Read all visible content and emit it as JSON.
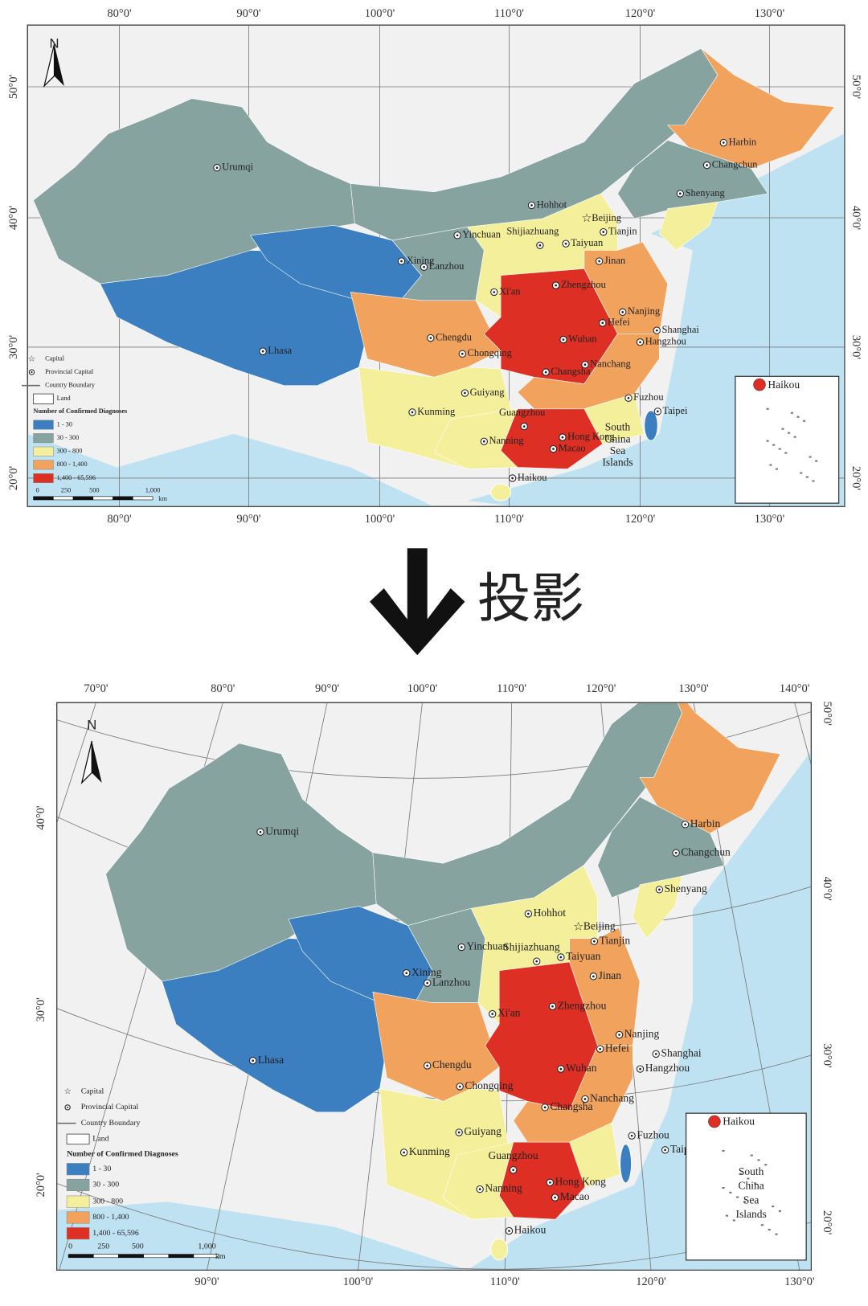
{
  "arrow_label": "投影",
  "maps": [
    {
      "north": "N",
      "lon_top_labels": [
        "80°0'",
        "90°0'",
        "100°0'",
        "110°0'",
        "120°0'",
        "130°0'"
      ],
      "lon_bottom_labels": [
        "80°0'",
        "90°0'",
        "100°0'",
        "110°0'",
        "120°0'",
        "130°0'"
      ],
      "lat_left_labels": [
        "50°0'",
        "40°0'",
        "30°0'",
        "20°0'"
      ],
      "lat_right_labels": [
        "50°0'",
        "40°0'",
        "30°0'",
        "20°0'"
      ],
      "cities": [
        "Urumqi",
        "Hohhot",
        "Beijing",
        "Tianjin",
        "Yinchuan",
        "Shijiazhuang",
        "Taiyuan",
        "Xining",
        "Lanzhou",
        "Jinan",
        "Zhengzhou",
        "Xi'an",
        "Nanjing",
        "Hefei",
        "Shanghai",
        "Chengdu",
        "Wuhan",
        "Hangzhou",
        "Lhasa",
        "Chongqing",
        "Nanchang",
        "Changsha",
        "Guiyang",
        "Fuzhou",
        "Taipei",
        "Kunming",
        "Guangzhou",
        "Hong Kong",
        "Nanning",
        "Macao",
        "Haikou",
        "Harbin",
        "Changchun",
        "Shenyang"
      ],
      "legend": {
        "symbols": [
          "Capital",
          "Provincial Capital",
          "Country Boundary",
          "Land"
        ],
        "title": "Number of Confirmed Diagnoses",
        "items": [
          {
            "label": "1 - 30",
            "color": "#3b7fc0"
          },
          {
            "label": "30 - 300",
            "color": "#86a3a0"
          },
          {
            "label": "300 - 800",
            "color": "#f4ef9a"
          },
          {
            "label": "800 - 1,400",
            "color": "#f1a35e"
          },
          {
            "label": "1,400 - 65,596",
            "color": "#de2f24"
          }
        ]
      },
      "scale": {
        "ticks": [
          "0",
          "250",
          "500",
          "1,000"
        ],
        "unit": "km"
      },
      "inset_label": "Haikou",
      "sea_label": [
        "South",
        "China",
        "Sea",
        "Islands"
      ]
    },
    {
      "north": "N",
      "lon_top_labels": [
        "70°0'",
        "80°0'",
        "90°0'",
        "100°0'",
        "110°0'",
        "120°0'",
        "130°0'",
        "140°0'"
      ],
      "lon_bottom_labels": [
        "90°0'",
        "100°0'",
        "110°0'",
        "120°0'",
        "130°0'"
      ],
      "lat_left_labels": [
        "40°0'",
        "30°0'",
        "20°0'"
      ],
      "lat_right_labels": [
        "50°0'",
        "40°0'",
        "30°0'",
        "20°0'"
      ],
      "cities": [
        "Urumqi",
        "Hohhot",
        "Beijing",
        "Tianjin",
        "Yinchuan",
        "Shijiazhuang",
        "Taiyuan",
        "Xining",
        "Lanzhou",
        "Jinan",
        "Zhengzhou",
        "Xi'an",
        "Nanjing",
        "Hefei",
        "Shanghai",
        "Chengdu",
        "Wuhan",
        "Hangzhou",
        "Lhasa",
        "Chongqing",
        "Nanchang",
        "Changsha",
        "Guiyang",
        "Fuzhou",
        "Taipei",
        "Kunming",
        "Guangzhou",
        "Hong Kong",
        "Nanning",
        "Macao",
        "Haikou",
        "Harbin",
        "Changchun",
        "Shenyang"
      ],
      "legend": {
        "symbols": [
          "Capital",
          "Provincial Capital",
          "Country Boundary",
          "Land"
        ],
        "title": "Number of Confirmed Diagnoses",
        "items": [
          {
            "label": "1 - 30",
            "color": "#3b7fc0"
          },
          {
            "label": "30 - 300",
            "color": "#86a3a0"
          },
          {
            "label": "300 - 800",
            "color": "#f4ef9a"
          },
          {
            "label": "800 - 1,400",
            "color": "#f1a35e"
          },
          {
            "label": "1,400 - 65,596",
            "color": "#de2f24"
          }
        ]
      },
      "scale": {
        "ticks": [
          "0",
          "250",
          "500",
          "1,000"
        ],
        "unit": "km"
      },
      "inset_label": "Haikou",
      "sea_label": [
        "South",
        "China",
        "Sea",
        "Islands"
      ]
    }
  ]
}
